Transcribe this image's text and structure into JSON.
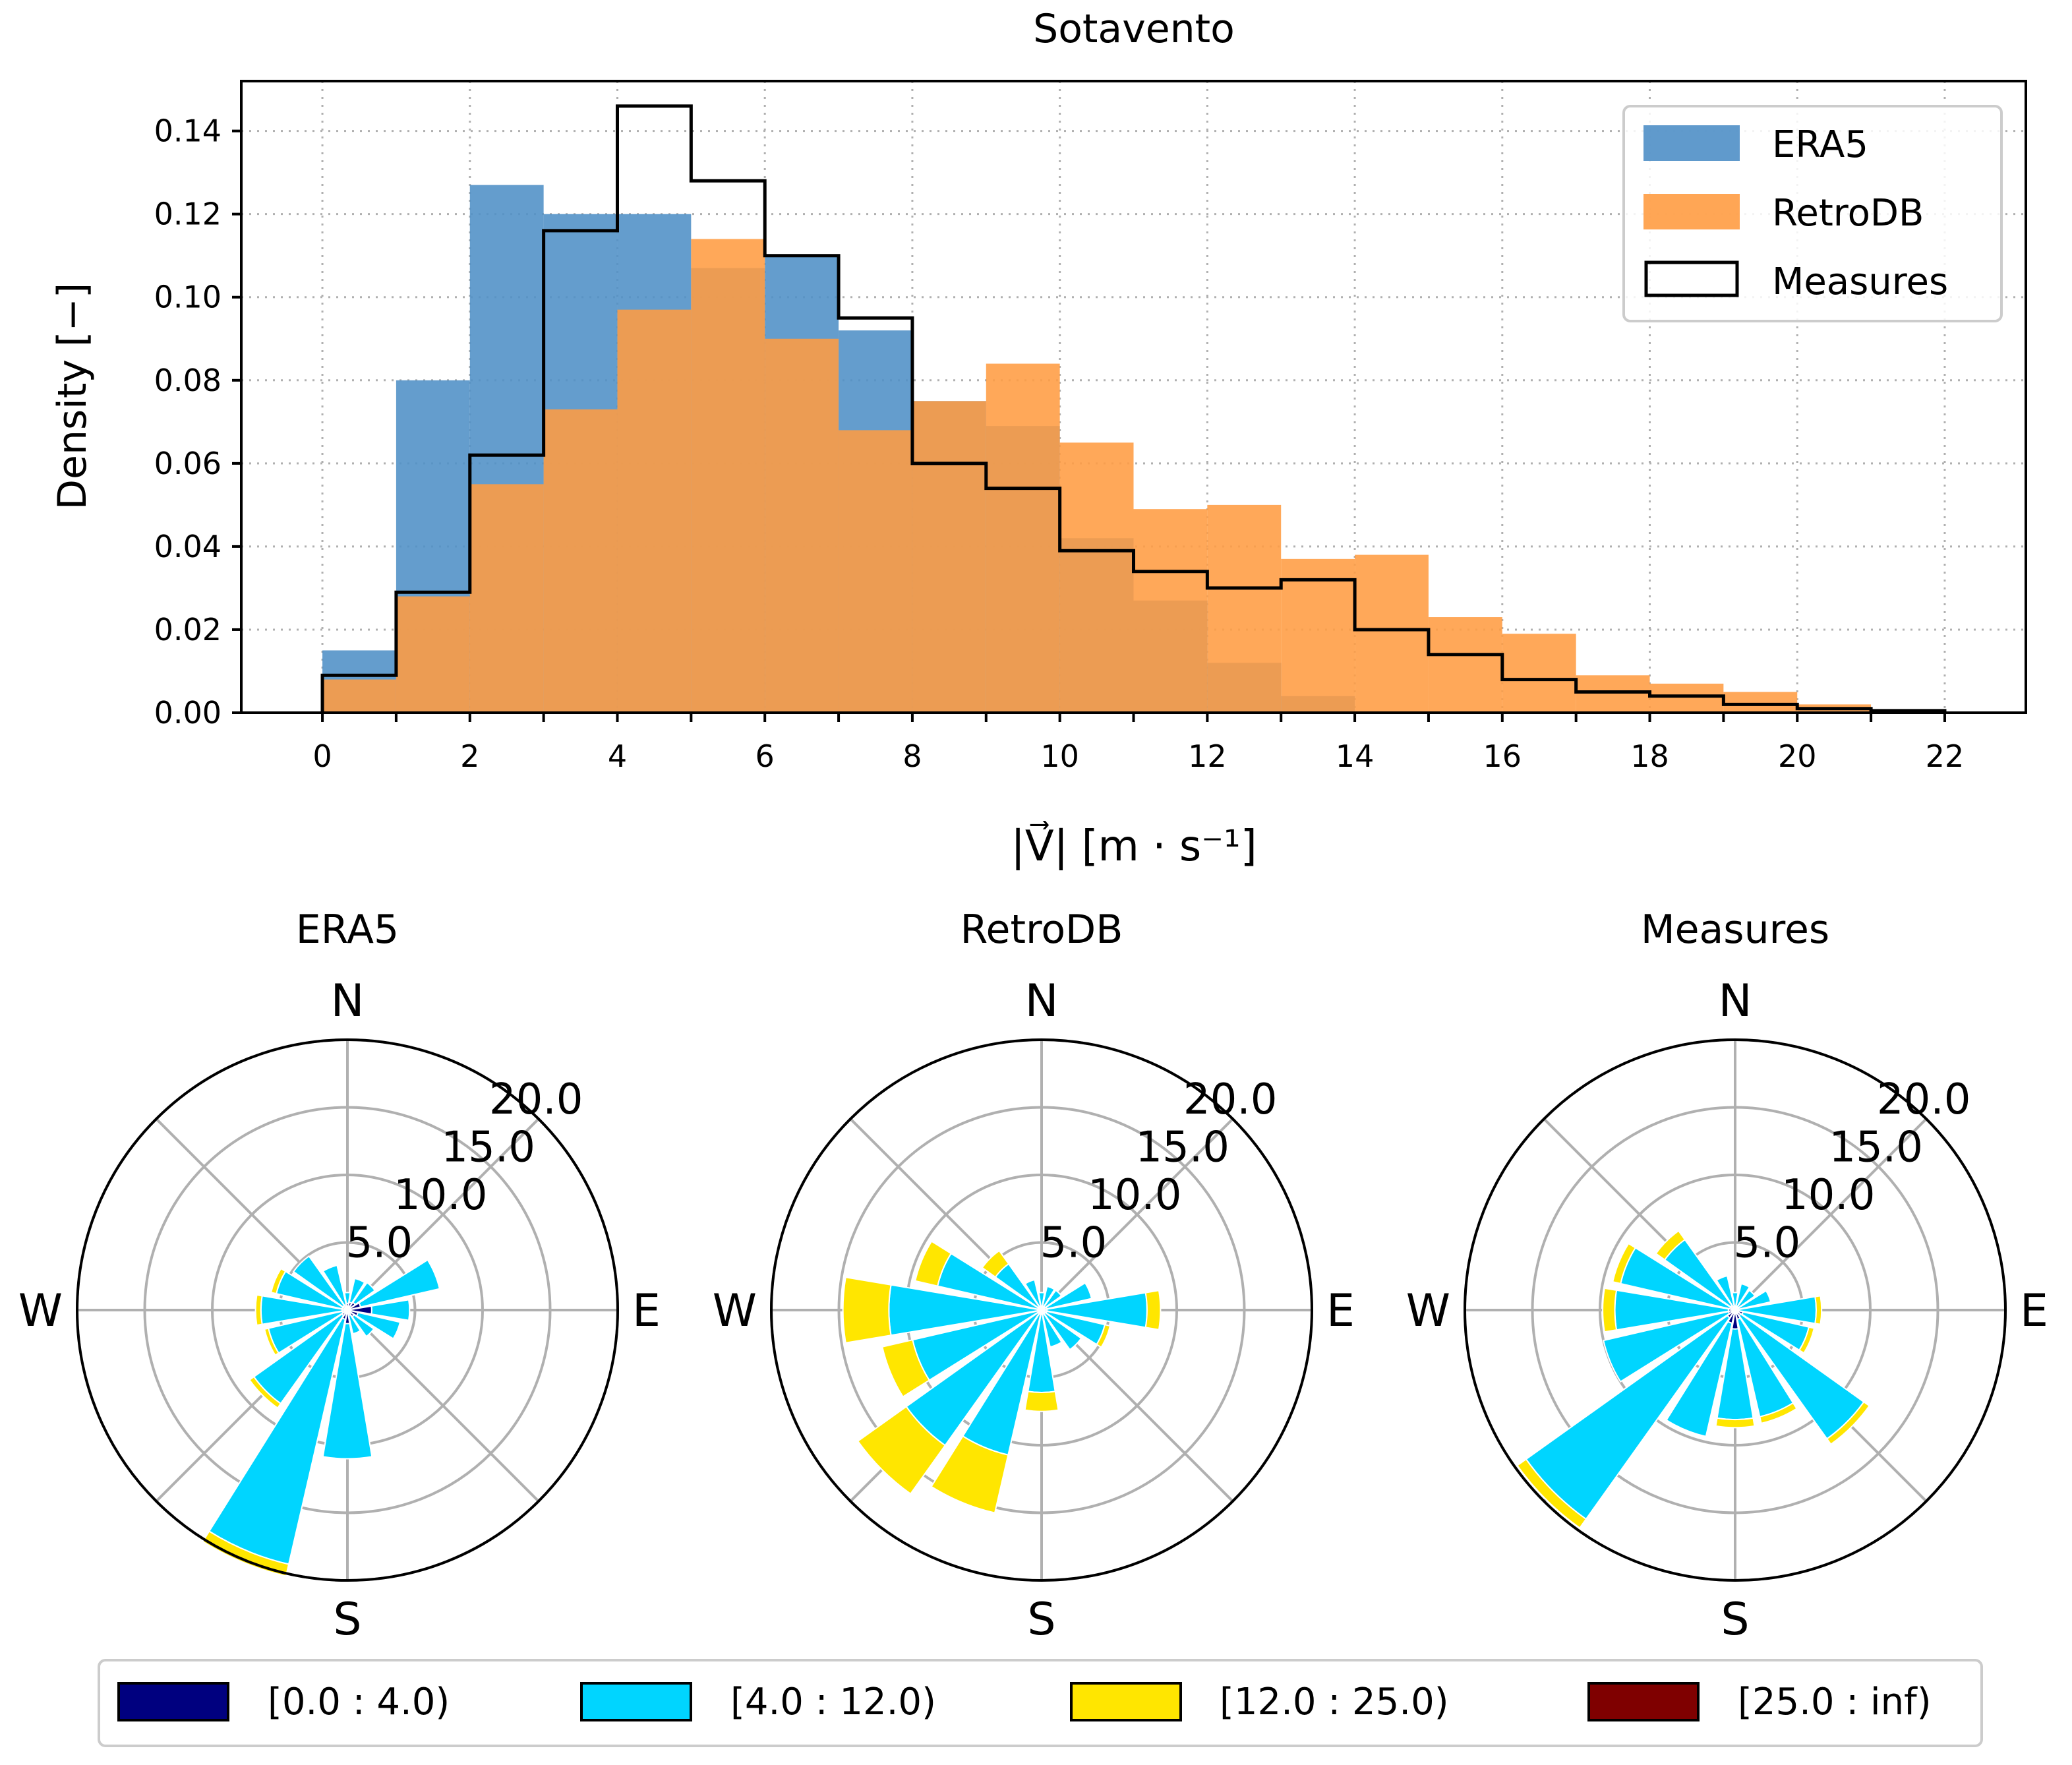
{
  "figure_title": "Sotavento",
  "chart_data": [
    {
      "type": "bar",
      "subtype": "histogram",
      "title": "Sotavento",
      "xlabel": "|V⃗| [m · s⁻¹]",
      "ylabel": "Density [−]",
      "xlim": [
        -1.1,
        23.1
      ],
      "ylim": [
        0,
        0.152
      ],
      "xticks": [
        0,
        2,
        4,
        6,
        8,
        10,
        12,
        14,
        16,
        18,
        20,
        22
      ],
      "xtick_labels": [
        "0",
        "2",
        "4",
        "6",
        "8",
        "10",
        "12",
        "14",
        "16",
        "18",
        "20",
        "22"
      ],
      "yticks": [
        0.0,
        0.02,
        0.04,
        0.06,
        0.08,
        0.1,
        0.12,
        0.14
      ],
      "ytick_labels": [
        "0.00",
        "0.02",
        "0.04",
        "0.06",
        "0.08",
        "0.10",
        "0.12",
        "0.14"
      ],
      "grid": true,
      "legend_position": "top-right",
      "bin_edges": [
        0,
        1,
        2,
        3,
        4,
        5,
        6,
        7,
        8,
        9,
        10,
        11,
        12,
        13,
        14,
        15,
        16,
        17,
        18,
        19,
        20,
        21,
        22
      ],
      "series": [
        {
          "name": "ERA5",
          "style": "filled",
          "color": "#4f8fc6",
          "values": [
            0.015,
            0.08,
            0.127,
            0.12,
            0.12,
            0.107,
            0.11,
            0.092,
            0.075,
            0.069,
            0.042,
            0.027,
            0.012,
            0.004,
            0.0,
            0.0,
            0.0,
            0.0,
            0.0,
            0.0,
            0.0,
            0.0
          ]
        },
        {
          "name": "RetroDB",
          "style": "filled",
          "color": "#ff9c42",
          "values": [
            0.008,
            0.028,
            0.055,
            0.073,
            0.097,
            0.114,
            0.09,
            0.068,
            0.075,
            0.084,
            0.065,
            0.049,
            0.05,
            0.037,
            0.038,
            0.023,
            0.019,
            0.009,
            0.007,
            0.005,
            0.002,
            0.0
          ]
        },
        {
          "name": "Measures",
          "style": "step",
          "color": "#000000",
          "values": [
            0.009,
            0.029,
            0.062,
            0.116,
            0.146,
            0.128,
            0.11,
            0.095,
            0.06,
            0.054,
            0.039,
            0.034,
            0.03,
            0.032,
            0.02,
            0.014,
            0.008,
            0.005,
            0.004,
            0.002,
            0.001,
            0.0005
          ]
        }
      ]
    },
    {
      "type": "windrose",
      "title": "ERA5",
      "radial_ticks": [
        5.0,
        10.0,
        15.0,
        20.0
      ],
      "radial_tick_labels": [
        "5.0",
        "10.0",
        "15.0",
        "20.0"
      ],
      "rmax": 20.0,
      "directions": [
        "N",
        "E",
        "S",
        "W"
      ],
      "sector_angles_deg": [
        0,
        22.5,
        45,
        67.5,
        90,
        112.5,
        135,
        157.5,
        180,
        202.5,
        225,
        247.5,
        270,
        292.5,
        315,
        337.5
      ],
      "bins": [
        "[0.0 : 4.0)",
        "[4.0 : 12.0)",
        "[12.0 : 25.0)",
        "[25.0 : inf)"
      ],
      "sectors": [
        [
          0.5,
          0.8,
          0.0,
          0.0
        ],
        [
          0.6,
          1.8,
          0.0,
          0.0
        ],
        [
          0.7,
          1.8,
          0.0,
          0.0
        ],
        [
          1.0,
          6.0,
          0.0,
          0.0
        ],
        [
          1.8,
          2.8,
          0.0,
          0.0
        ],
        [
          0.8,
          3.2,
          0.0,
          0.0
        ],
        [
          0.6,
          1.8,
          0.0,
          0.0
        ],
        [
          0.4,
          1.4,
          0.0,
          0.0
        ],
        [
          1.0,
          10.0,
          0.0,
          0.0
        ],
        [
          0.7,
          18.6,
          0.9,
          0.0
        ],
        [
          0.5,
          8.0,
          0.4,
          0.0
        ],
        [
          0.4,
          5.6,
          0.3,
          0.0
        ],
        [
          0.4,
          6.0,
          0.4,
          0.0
        ],
        [
          0.4,
          5.0,
          0.4,
          0.0
        ],
        [
          0.4,
          4.5,
          0.0,
          0.0
        ],
        [
          0.4,
          3.0,
          0.0,
          0.0
        ]
      ]
    },
    {
      "type": "windrose",
      "title": "RetroDB",
      "radial_ticks": [
        5.0,
        10.0,
        15.0,
        20.0
      ],
      "radial_tick_labels": [
        "5.0",
        "10.0",
        "15.0",
        "20.0"
      ],
      "rmax": 20.0,
      "directions": [
        "N",
        "E",
        "S",
        "W"
      ],
      "sector_angles_deg": [
        0,
        22.5,
        45,
        67.5,
        90,
        112.5,
        135,
        157.5,
        180,
        202.5,
        225,
        247.5,
        270,
        292.5,
        315,
        337.5
      ],
      "bins": [
        "[0.0 : 4.0)",
        "[4.0 : 12.0)",
        "[12.0 : 25.0)",
        "[25.0 : inf)"
      ],
      "sectors": [
        [
          0.3,
          1.0,
          0.0,
          0.0
        ],
        [
          0.3,
          1.5,
          0.0,
          0.0
        ],
        [
          0.3,
          1.5,
          0.0,
          0.0
        ],
        [
          0.4,
          3.4,
          0.0,
          0.0
        ],
        [
          0.4,
          7.4,
          1.0,
          0.0
        ],
        [
          0.4,
          4.4,
          0.4,
          0.0
        ],
        [
          0.3,
          3.3,
          0.0,
          0.0
        ],
        [
          0.3,
          2.5,
          0.0,
          0.0
        ],
        [
          0.3,
          5.8,
          1.4,
          0.0
        ],
        [
          0.3,
          10.7,
          4.4,
          0.0
        ],
        [
          0.3,
          12.0,
          4.4,
          0.0
        ],
        [
          0.3,
          9.5,
          2.3,
          0.0
        ],
        [
          0.3,
          11.0,
          3.4,
          0.0
        ],
        [
          0.3,
          7.6,
          1.7,
          0.0
        ],
        [
          0.3,
          3.9,
          1.2,
          0.0
        ],
        [
          0.3,
          2.0,
          0.0,
          0.0
        ]
      ]
    },
    {
      "type": "windrose",
      "title": "Measures",
      "radial_ticks": [
        5.0,
        10.0,
        15.0,
        20.0
      ],
      "radial_tick_labels": [
        "5.0",
        "10.0",
        "15.0",
        "20.0"
      ],
      "rmax": 20.0,
      "directions": [
        "N",
        "E",
        "S",
        "W"
      ],
      "sector_angles_deg": [
        0,
        22.5,
        45,
        67.5,
        90,
        112.5,
        135,
        157.5,
        180,
        202.5,
        225,
        247.5,
        270,
        292.5,
        315,
        337.5
      ],
      "bins": [
        "[0.0 : 4.0)",
        "[4.0 : 12.0)",
        "[12.0 : 25.0)",
        "[25.0 : inf)"
      ],
      "sectors": [
        [
          0.3,
          1.0,
          0.0,
          0.0
        ],
        [
          0.3,
          1.7,
          0.0,
          0.0
        ],
        [
          0.3,
          1.5,
          0.0,
          0.0
        ],
        [
          0.3,
          2.4,
          0.0,
          0.0
        ],
        [
          0.3,
          5.7,
          0.4,
          0.0
        ],
        [
          0.6,
          5.0,
          0.4,
          0.0
        ],
        [
          0.5,
          11.2,
          0.5,
          0.0
        ],
        [
          0.7,
          7.4,
          0.5,
          0.0
        ],
        [
          1.4,
          6.7,
          0.6,
          0.0
        ],
        [
          1.0,
          8.6,
          0.0,
          0.0
        ],
        [
          0.7,
          18.3,
          0.8,
          0.0
        ],
        [
          0.5,
          9.5,
          0.0,
          0.0
        ],
        [
          0.5,
          8.4,
          0.9,
          0.0
        ],
        [
          0.4,
          8.3,
          0.6,
          0.0
        ],
        [
          0.4,
          6.0,
          0.8,
          0.0
        ],
        [
          0.3,
          2.3,
          0.0,
          0.0
        ]
      ]
    }
  ],
  "histogram_legend": {
    "entries": [
      "ERA5",
      "RetroDB",
      "Measures"
    ]
  },
  "windrose_legend": {
    "entries": [
      "[0.0 : 4.0)",
      "[4.0 : 12.0)",
      "[12.0 : 25.0)",
      "[25.0 : inf)"
    ],
    "colors": [
      "#00007f",
      "#00d5ff",
      "#ffe600",
      "#7f0000"
    ]
  }
}
